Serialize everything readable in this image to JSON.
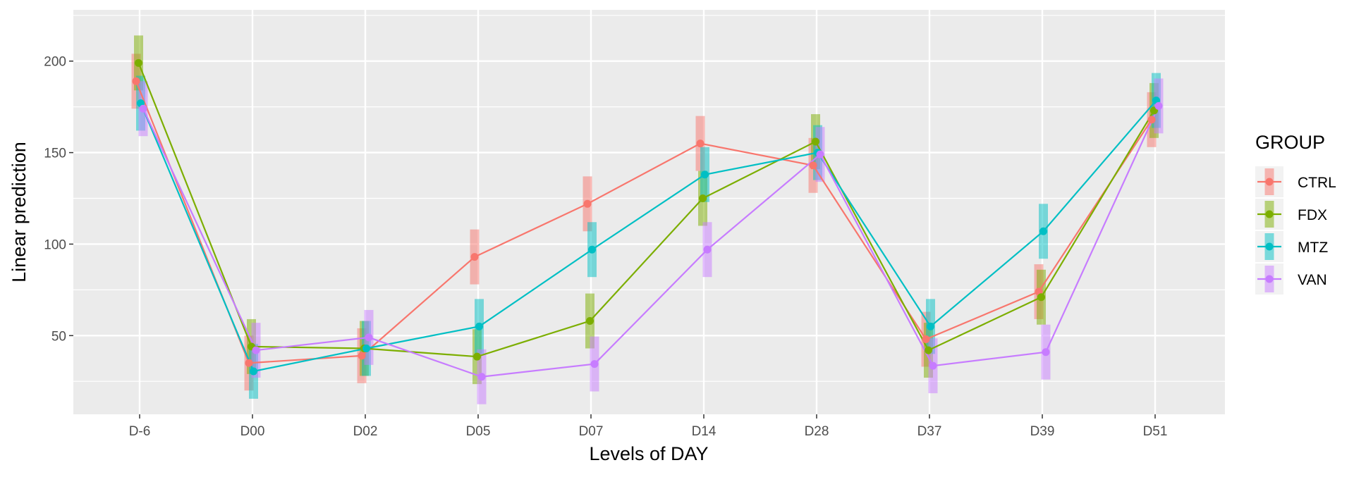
{
  "chart_data": {
    "type": "line",
    "xlabel": "Levels of DAY",
    "ylabel": "Linear prediction",
    "categories": [
      "D-6",
      "D00",
      "D02",
      "D05",
      "D07",
      "D14",
      "D28",
      "D37",
      "D39",
      "D51"
    ],
    "ylim": [
      7,
      228
    ],
    "yticks": [
      50,
      100,
      150,
      200
    ],
    "grid": true,
    "legend": {
      "title": "GROUP",
      "position": "right"
    },
    "series": [
      {
        "name": "CTRL",
        "color": "#F8766D",
        "values": [
          189,
          35,
          39,
          93,
          122,
          155,
          143,
          48,
          74,
          168
        ],
        "lower": [
          174,
          20,
          24,
          78,
          107,
          140,
          128,
          33,
          59,
          153
        ],
        "upper": [
          204,
          50,
          54,
          108,
          137,
          170,
          158,
          63,
          89,
          183
        ]
      },
      {
        "name": "FDX",
        "color": "#7CAE00",
        "values": [
          199,
          44,
          43,
          38.5,
          58,
          125,
          156,
          42,
          71,
          173
        ],
        "lower": [
          184,
          29,
          28,
          23.5,
          43,
          110,
          141,
          27,
          56,
          158
        ],
        "upper": [
          214,
          59,
          58,
          53.5,
          73,
          140,
          171,
          57,
          86,
          188
        ]
      },
      {
        "name": "MTZ",
        "color": "#00BFC4",
        "values": [
          177,
          30.5,
          43,
          55,
          97,
          138,
          150,
          55,
          107,
          178.5
        ],
        "lower": [
          162,
          15.5,
          28,
          40,
          82,
          123,
          135,
          40,
          92,
          163.5
        ],
        "upper": [
          192,
          45.5,
          58,
          70,
          112,
          153,
          165,
          70,
          122,
          193.5
        ]
      },
      {
        "name": "VAN",
        "color": "#C77CFF",
        "values": [
          174,
          42,
          49,
          27.5,
          34.5,
          97,
          149,
          33.5,
          41,
          175.5
        ],
        "lower": [
          159,
          27,
          34,
          12.5,
          19.5,
          82,
          134,
          18.5,
          26,
          160.5
        ],
        "upper": [
          189,
          57,
          64,
          42.5,
          49.5,
          112,
          164,
          48.5,
          56,
          190.5
        ]
      }
    ]
  }
}
